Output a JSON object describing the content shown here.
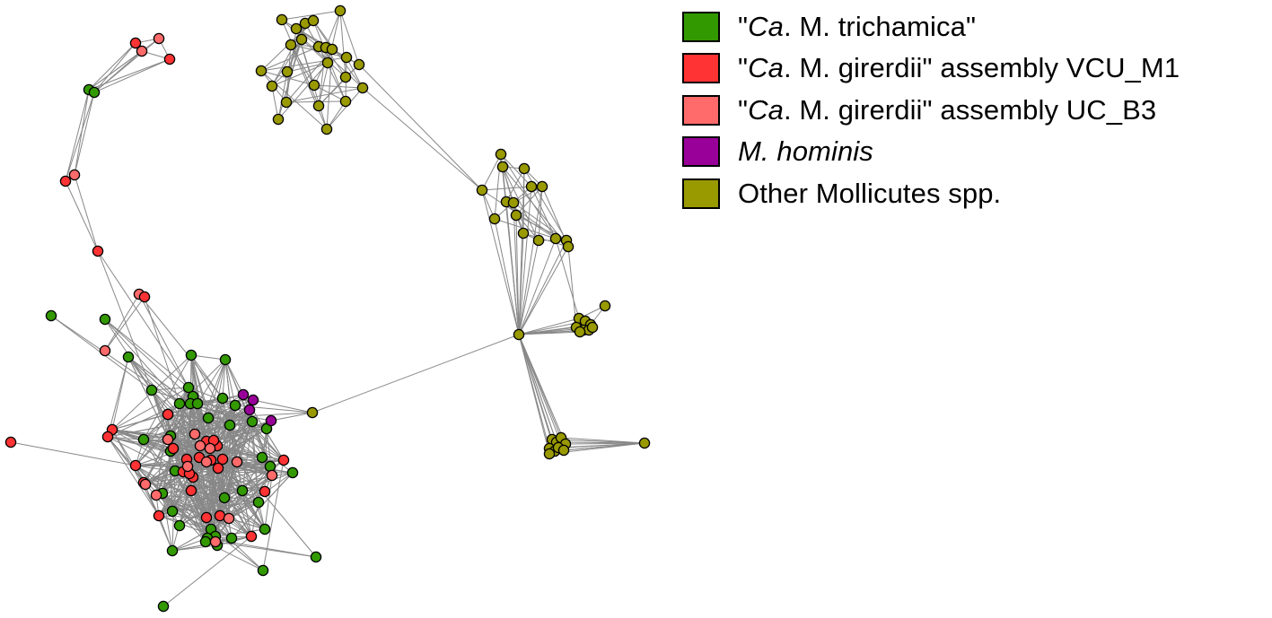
{
  "colors": {
    "edge": "#888888",
    "node_stroke": "#000000",
    "trichamica": "#339900",
    "girerdii_vcu": "#ff3333",
    "girerdii_uc": "#ff6b6b",
    "hominis": "#990099",
    "mollicutes": "#999900"
  },
  "legend": [
    {
      "key": "trichamica",
      "pre": "\"",
      "italic": "Ca",
      "post": ". M. trichamica\""
    },
    {
      "key": "girerdii_vcu",
      "pre": "\"",
      "italic": "Ca",
      "post": ". M. girerdii\" assembly VCU_M1"
    },
    {
      "key": "girerdii_uc",
      "pre": "\"",
      "italic": "Ca",
      "post": ". M. girerdii\" assembly UC_B3"
    },
    {
      "key": "hominis",
      "pre": "",
      "italic": "M. hominis",
      "post": ""
    },
    {
      "key": "mollicutes",
      "pre": "",
      "italic": "",
      "post": "Other Mollicutes spp."
    }
  ]
}
